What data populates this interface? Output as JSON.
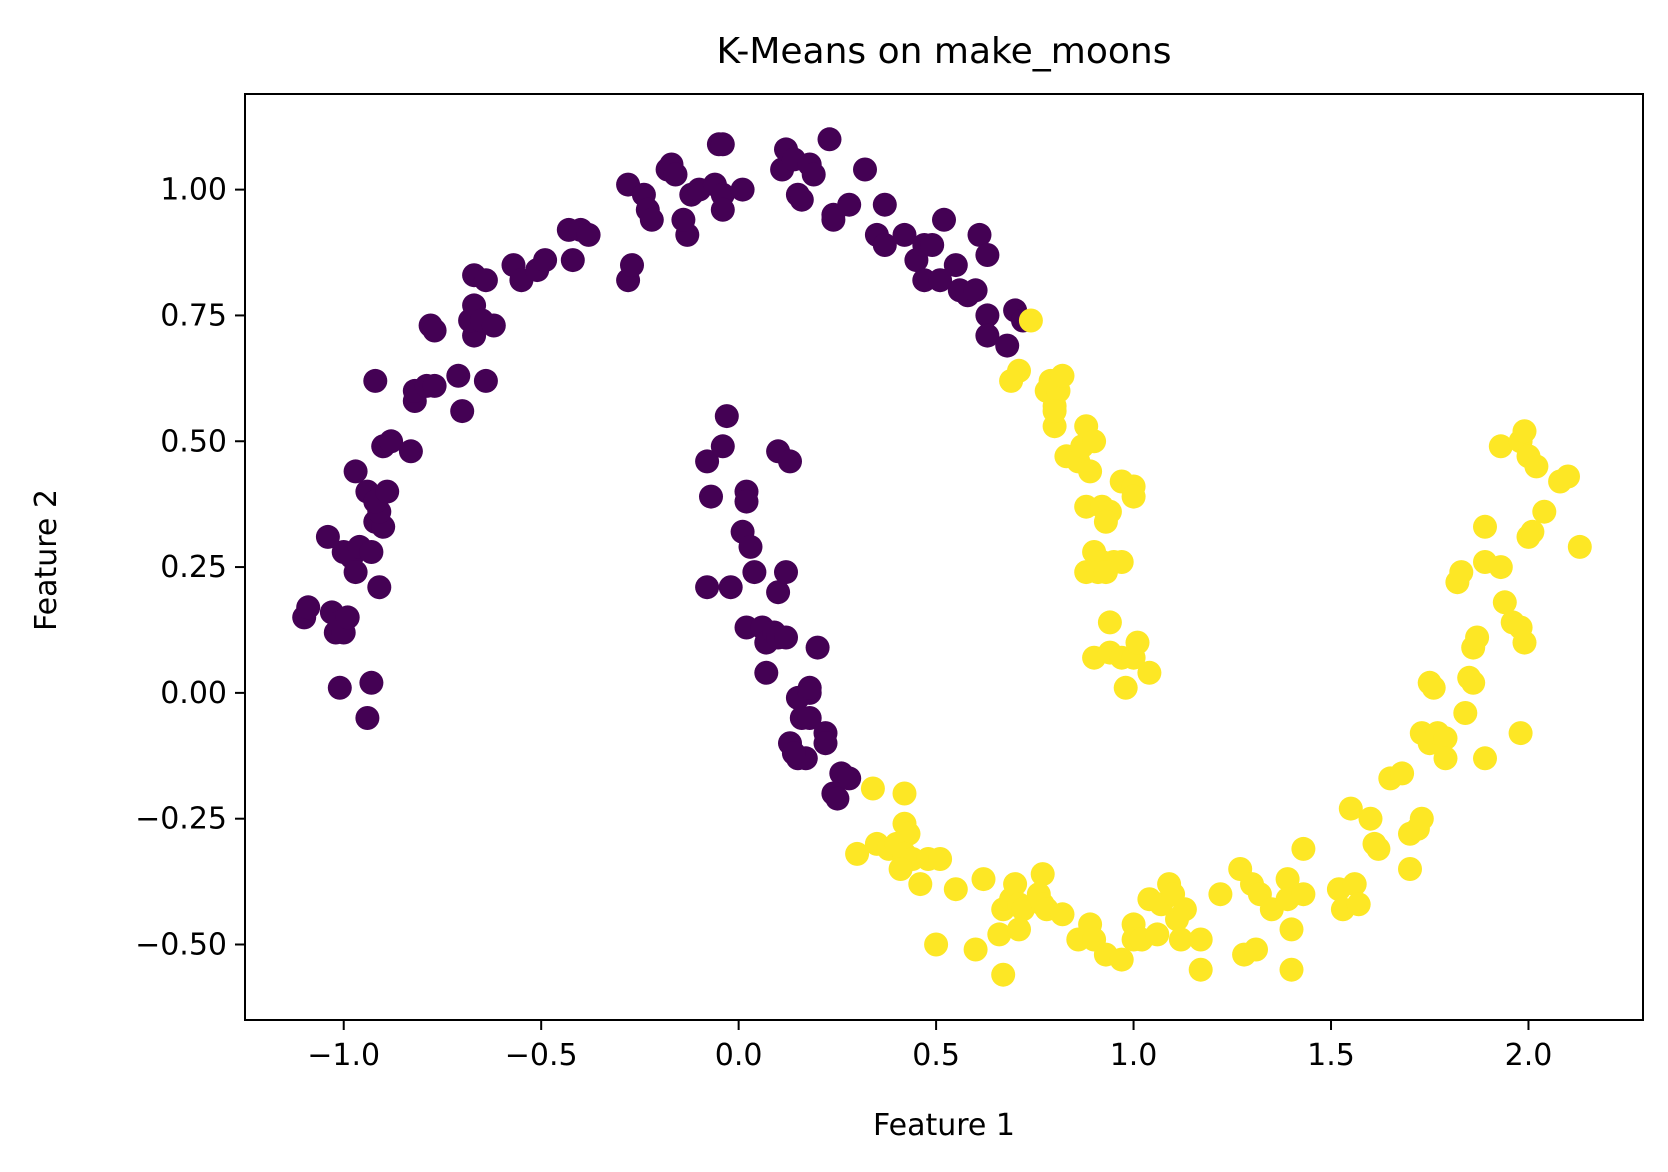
{
  "chart_data": {
    "type": "scatter",
    "title": "K-Means on make_moons",
    "xlabel": "Feature 1",
    "ylabel": "Feature 2",
    "xlim": [
      -1.25,
      2.29
    ],
    "ylim": [
      -0.65,
      1.19
    ],
    "xticks": [
      -1.0,
      -0.5,
      0.0,
      0.5,
      1.0,
      1.5,
      2.0
    ],
    "xtick_labels": [
      "−1.0",
      "−0.5",
      "0.0",
      "0.5",
      "1.0",
      "1.5",
      "2.0"
    ],
    "yticks": [
      -0.5,
      -0.25,
      0.0,
      0.25,
      0.5,
      0.75,
      1.0
    ],
    "ytick_labels": [
      "−0.50",
      "−0.25",
      "0.00",
      "0.25",
      "0.50",
      "0.75",
      "1.00"
    ],
    "grid": false,
    "legend": "none",
    "series": [
      {
        "color": "#440154",
        "points": [
          [
            -1.1,
            0.15
          ],
          [
            -1.09,
            0.17
          ],
          [
            -1.04,
            0.31
          ],
          [
            -1.03,
            0.16
          ],
          [
            -1.02,
            0.12
          ],
          [
            -1.01,
            0.14
          ],
          [
            -1.0,
            0.12
          ],
          [
            -0.99,
            0.15
          ],
          [
            -1.01,
            0.01
          ],
          [
            -0.94,
            -0.05
          ],
          [
            -0.93,
            0.02
          ],
          [
            -1.0,
            0.28
          ],
          [
            -0.98,
            0.27
          ],
          [
            -0.97,
            0.24
          ],
          [
            -0.96,
            0.29
          ],
          [
            -0.93,
            0.28
          ],
          [
            -0.91,
            0.21
          ],
          [
            -0.92,
            0.34
          ],
          [
            -0.9,
            0.33
          ],
          [
            -0.91,
            0.36
          ],
          [
            -0.94,
            0.4
          ],
          [
            -0.92,
            0.38
          ],
          [
            -0.89,
            0.4
          ],
          [
            -0.97,
            0.44
          ],
          [
            -0.9,
            0.49
          ],
          [
            -0.88,
            0.5
          ],
          [
            -0.83,
            0.48
          ],
          [
            -0.92,
            0.62
          ],
          [
            -0.82,
            0.58
          ],
          [
            -0.82,
            0.6
          ],
          [
            -0.79,
            0.61
          ],
          [
            -0.77,
            0.61
          ],
          [
            -0.78,
            0.73
          ],
          [
            -0.77,
            0.72
          ],
          [
            -0.71,
            0.63
          ],
          [
            -0.7,
            0.56
          ],
          [
            -0.64,
            0.62
          ],
          [
            -0.67,
            0.71
          ],
          [
            -0.68,
            0.74
          ],
          [
            -0.67,
            0.77
          ],
          [
            -0.65,
            0.74
          ],
          [
            -0.62,
            0.73
          ],
          [
            -0.67,
            0.83
          ],
          [
            -0.64,
            0.82
          ],
          [
            -0.57,
            0.85
          ],
          [
            -0.55,
            0.82
          ],
          [
            -0.51,
            0.84
          ],
          [
            -0.49,
            0.86
          ],
          [
            -0.43,
            0.92
          ],
          [
            -0.42,
            0.86
          ],
          [
            -0.4,
            0.92
          ],
          [
            -0.38,
            0.91
          ],
          [
            -0.28,
            0.82
          ],
          [
            -0.27,
            0.85
          ],
          [
            -0.28,
            1.01
          ],
          [
            -0.24,
            0.99
          ],
          [
            -0.23,
            0.96
          ],
          [
            -0.22,
            0.94
          ],
          [
            -0.18,
            1.04
          ],
          [
            -0.17,
            1.05
          ],
          [
            -0.16,
            1.03
          ],
          [
            -0.13,
            0.91
          ],
          [
            -0.14,
            0.94
          ],
          [
            -0.12,
            0.99
          ],
          [
            -0.1,
            1.0
          ],
          [
            -0.06,
            1.01
          ],
          [
            -0.05,
            1.09
          ],
          [
            -0.04,
            1.09
          ],
          [
            -0.04,
            0.99
          ],
          [
            -0.04,
            0.96
          ],
          [
            0.01,
            1.0
          ],
          [
            0.11,
            1.04
          ],
          [
            0.12,
            1.08
          ],
          [
            0.14,
            1.06
          ],
          [
            0.15,
            0.99
          ],
          [
            0.16,
            0.98
          ],
          [
            0.18,
            1.05
          ],
          [
            0.19,
            1.03
          ],
          [
            0.23,
            1.1
          ],
          [
            0.24,
            0.95
          ],
          [
            0.24,
            0.94
          ],
          [
            0.28,
            0.97
          ],
          [
            0.32,
            1.04
          ],
          [
            0.35,
            0.91
          ],
          [
            0.37,
            0.97
          ],
          [
            0.37,
            0.89
          ],
          [
            0.42,
            0.91
          ],
          [
            0.45,
            0.86
          ],
          [
            0.47,
            0.82
          ],
          [
            0.47,
            0.89
          ],
          [
            0.49,
            0.89
          ],
          [
            0.51,
            0.82
          ],
          [
            0.52,
            0.94
          ],
          [
            0.55,
            0.85
          ],
          [
            0.56,
            0.8
          ],
          [
            0.58,
            0.79
          ],
          [
            0.6,
            0.8
          ],
          [
            0.61,
            0.91
          ],
          [
            0.63,
            0.87
          ],
          [
            0.63,
            0.75
          ],
          [
            0.63,
            0.71
          ],
          [
            0.68,
            0.69
          ],
          [
            0.7,
            0.76
          ],
          [
            0.72,
            0.74
          ],
          [
            -0.08,
            0.46
          ],
          [
            -0.04,
            0.49
          ],
          [
            -0.03,
            0.55
          ],
          [
            -0.07,
            0.39
          ],
          [
            0.02,
            0.4
          ],
          [
            0.02,
            0.38
          ],
          [
            0.01,
            0.32
          ],
          [
            0.03,
            0.29
          ],
          [
            -0.08,
            0.21
          ],
          [
            -0.02,
            0.21
          ],
          [
            0.04,
            0.24
          ],
          [
            0.1,
            0.48
          ],
          [
            0.13,
            0.46
          ],
          [
            0.1,
            0.2
          ],
          [
            0.12,
            0.24
          ],
          [
            0.02,
            0.13
          ],
          [
            0.06,
            0.13
          ],
          [
            0.07,
            0.1
          ],
          [
            0.09,
            0.12
          ],
          [
            0.1,
            0.11
          ],
          [
            0.12,
            0.11
          ],
          [
            0.07,
            0.04
          ],
          [
            0.2,
            0.09
          ],
          [
            0.15,
            -0.01
          ],
          [
            0.18,
            0.0
          ],
          [
            0.18,
            0.01
          ],
          [
            0.16,
            -0.05
          ],
          [
            0.18,
            -0.05
          ],
          [
            0.13,
            -0.1
          ],
          [
            0.22,
            -0.08
          ],
          [
            0.22,
            -0.1
          ],
          [
            0.15,
            -0.13
          ],
          [
            0.17,
            -0.13
          ],
          [
            0.14,
            -0.12
          ],
          [
            0.26,
            -0.16
          ],
          [
            0.28,
            -0.17
          ],
          [
            0.24,
            -0.2
          ],
          [
            0.25,
            -0.21
          ]
        ]
      },
      {
        "color": "#fde725",
        "points": [
          [
            0.74,
            0.74
          ],
          [
            0.71,
            0.64
          ],
          [
            0.69,
            0.62
          ],
          [
            0.78,
            0.6
          ],
          [
            0.79,
            0.62
          ],
          [
            0.8,
            0.57
          ],
          [
            0.81,
            0.6
          ],
          [
            0.82,
            0.63
          ],
          [
            0.8,
            0.53
          ],
          [
            0.8,
            0.56
          ],
          [
            0.83,
            0.47
          ],
          [
            0.86,
            0.46
          ],
          [
            0.87,
            0.49
          ],
          [
            0.88,
            0.53
          ],
          [
            0.89,
            0.44
          ],
          [
            0.9,
            0.5
          ],
          [
            0.88,
            0.37
          ],
          [
            0.92,
            0.37
          ],
          [
            0.94,
            0.36
          ],
          [
            0.93,
            0.34
          ],
          [
            0.97,
            0.42
          ],
          [
            1.0,
            0.41
          ],
          [
            1.0,
            0.39
          ],
          [
            0.9,
            0.28
          ],
          [
            0.92,
            0.26
          ],
          [
            0.95,
            0.26
          ],
          [
            0.97,
            0.26
          ],
          [
            0.88,
            0.24
          ],
          [
            0.91,
            0.24
          ],
          [
            0.93,
            0.24
          ],
          [
            0.94,
            0.14
          ],
          [
            0.9,
            0.07
          ],
          [
            0.94,
            0.08
          ],
          [
            0.97,
            0.07
          ],
          [
            1.0,
            0.07
          ],
          [
            1.01,
            0.1
          ],
          [
            1.04,
            0.04
          ],
          [
            0.98,
            0.01
          ],
          [
            0.34,
            -0.19
          ],
          [
            0.42,
            -0.2
          ],
          [
            0.3,
            -0.32
          ],
          [
            0.35,
            -0.3
          ],
          [
            0.38,
            -0.31
          ],
          [
            0.4,
            -0.3
          ],
          [
            0.42,
            -0.26
          ],
          [
            0.43,
            -0.28
          ],
          [
            0.42,
            -0.32
          ],
          [
            0.44,
            -0.33
          ],
          [
            0.41,
            -0.35
          ],
          [
            0.46,
            -0.38
          ],
          [
            0.48,
            -0.33
          ],
          [
            0.51,
            -0.33
          ],
          [
            0.55,
            -0.39
          ],
          [
            0.5,
            -0.5
          ],
          [
            0.6,
            -0.51
          ],
          [
            0.62,
            -0.37
          ],
          [
            0.66,
            -0.48
          ],
          [
            0.67,
            -0.43
          ],
          [
            0.69,
            -0.41
          ],
          [
            0.7,
            -0.38
          ],
          [
            0.71,
            -0.42
          ],
          [
            0.72,
            -0.43
          ],
          [
            0.71,
            -0.47
          ],
          [
            0.77,
            -0.36
          ],
          [
            0.76,
            -0.4
          ],
          [
            0.77,
            -0.42
          ],
          [
            0.78,
            -0.43
          ],
          [
            0.67,
            -0.56
          ],
          [
            0.82,
            -0.44
          ],
          [
            0.86,
            -0.49
          ],
          [
            0.89,
            -0.46
          ],
          [
            0.9,
            -0.49
          ],
          [
            0.93,
            -0.52
          ],
          [
            0.97,
            -0.53
          ],
          [
            1.0,
            -0.46
          ],
          [
            1.0,
            -0.49
          ],
          [
            1.02,
            -0.49
          ],
          [
            1.04,
            -0.41
          ],
          [
            1.06,
            -0.48
          ],
          [
            1.07,
            -0.42
          ],
          [
            1.09,
            -0.38
          ],
          [
            1.1,
            -0.4
          ],
          [
            1.11,
            -0.45
          ],
          [
            1.12,
            -0.49
          ],
          [
            1.13,
            -0.43
          ],
          [
            1.17,
            -0.49
          ],
          [
            1.17,
            -0.55
          ],
          [
            1.22,
            -0.4
          ],
          [
            1.28,
            -0.52
          ],
          [
            1.31,
            -0.51
          ],
          [
            1.27,
            -0.35
          ],
          [
            1.3,
            -0.38
          ],
          [
            1.32,
            -0.4
          ],
          [
            1.35,
            -0.43
          ],
          [
            1.39,
            -0.37
          ],
          [
            1.39,
            -0.41
          ],
          [
            1.4,
            -0.47
          ],
          [
            1.4,
            -0.55
          ],
          [
            1.43,
            -0.31
          ],
          [
            1.43,
            -0.4
          ],
          [
            1.52,
            -0.39
          ],
          [
            1.53,
            -0.43
          ],
          [
            1.55,
            -0.23
          ],
          [
            1.56,
            -0.38
          ],
          [
            1.57,
            -0.42
          ],
          [
            1.6,
            -0.25
          ],
          [
            1.61,
            -0.3
          ],
          [
            1.62,
            -0.31
          ],
          [
            1.65,
            -0.17
          ],
          [
            1.68,
            -0.16
          ],
          [
            1.7,
            -0.28
          ],
          [
            1.7,
            -0.35
          ],
          [
            1.72,
            -0.27
          ],
          [
            1.73,
            -0.25
          ],
          [
            1.73,
            -0.08
          ],
          [
            1.75,
            -0.1
          ],
          [
            1.77,
            -0.08
          ],
          [
            1.79,
            -0.09
          ],
          [
            1.79,
            -0.13
          ],
          [
            1.75,
            0.02
          ],
          [
            1.76,
            0.01
          ],
          [
            1.84,
            -0.04
          ],
          [
            1.85,
            0.03
          ],
          [
            1.86,
            0.02
          ],
          [
            1.86,
            0.09
          ],
          [
            1.87,
            0.11
          ],
          [
            1.89,
            -0.13
          ],
          [
            1.98,
            -0.08
          ],
          [
            1.82,
            0.22
          ],
          [
            1.83,
            0.24
          ],
          [
            1.89,
            0.33
          ],
          [
            1.89,
            0.26
          ],
          [
            1.93,
            0.25
          ],
          [
            1.94,
            0.18
          ],
          [
            1.96,
            0.14
          ],
          [
            1.98,
            0.13
          ],
          [
            1.99,
            0.1
          ],
          [
            2.0,
            0.31
          ],
          [
            2.01,
            0.32
          ],
          [
            2.04,
            0.36
          ],
          [
            1.93,
            0.49
          ],
          [
            1.98,
            0.5
          ],
          [
            1.99,
            0.52
          ],
          [
            2.0,
            0.47
          ],
          [
            2.02,
            0.45
          ],
          [
            2.08,
            0.42
          ],
          [
            2.1,
            0.43
          ],
          [
            2.13,
            0.29
          ]
        ]
      }
    ]
  }
}
